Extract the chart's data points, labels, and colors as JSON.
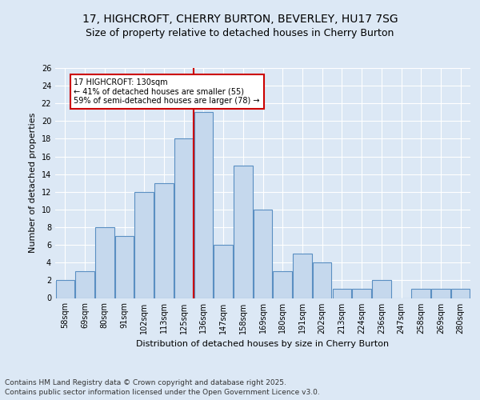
{
  "title": "17, HIGHCROFT, CHERRY BURTON, BEVERLEY, HU17 7SG",
  "subtitle": "Size of property relative to detached houses in Cherry Burton",
  "xlabel": "Distribution of detached houses by size in Cherry Burton",
  "ylabel": "Number of detached properties",
  "categories": [
    "58sqm",
    "69sqm",
    "80sqm",
    "91sqm",
    "102sqm",
    "113sqm",
    "125sqm",
    "136sqm",
    "147sqm",
    "158sqm",
    "169sqm",
    "180sqm",
    "191sqm",
    "202sqm",
    "213sqm",
    "224sqm",
    "236sqm",
    "247sqm",
    "258sqm",
    "269sqm",
    "280sqm"
  ],
  "values": [
    2,
    3,
    8,
    7,
    12,
    13,
    18,
    21,
    6,
    15,
    10,
    3,
    5,
    4,
    1,
    1,
    2,
    0,
    1,
    1,
    1
  ],
  "bar_color": "#c5d8ed",
  "bar_edge_color": "#5a8fc2",
  "bar_edge_width": 0.8,
  "vline_x_index": 7,
  "vline_color": "#cc0000",
  "annotation_text": "17 HIGHCROFT: 130sqm\n← 41% of detached houses are smaller (55)\n59% of semi-detached houses are larger (78) →",
  "annotation_box_color": "#ffffff",
  "annotation_box_edge_color": "#cc0000",
  "background_color": "#dce8f5",
  "plot_bg_color": "#dce8f5",
  "grid_color": "#ffffff",
  "ylim": [
    0,
    26
  ],
  "yticks": [
    0,
    2,
    4,
    6,
    8,
    10,
    12,
    14,
    16,
    18,
    20,
    22,
    24,
    26
  ],
  "title_fontsize": 10,
  "subtitle_fontsize": 9,
  "ylabel_fontsize": 8,
  "xlabel_fontsize": 8,
  "tick_fontsize": 7,
  "annotation_fontsize": 7,
  "footer_text": "Contains HM Land Registry data © Crown copyright and database right 2025.\nContains public sector information licensed under the Open Government Licence v3.0.",
  "footer_fontsize": 6.5
}
